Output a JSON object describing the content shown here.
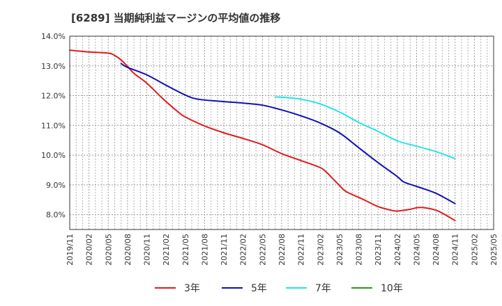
{
  "chart_data": {
    "type": "line",
    "title": "[6289]  当期純利益マージンの平均値の推移",
    "xlabel": "",
    "ylabel": "",
    "x_ticks": [
      "2019/11",
      "2020/02",
      "2020/05",
      "2020/08",
      "2020/11",
      "2021/02",
      "2021/05",
      "2021/08",
      "2021/11",
      "2022/02",
      "2022/05",
      "2022/08",
      "2022/11",
      "2023/02",
      "2023/05",
      "2023/08",
      "2023/11",
      "2024/02",
      "2024/05",
      "2024/08",
      "2024/11",
      "2025/02",
      "2025/05"
    ],
    "y_ticks": [
      "8.0%",
      "9.0%",
      "10.0%",
      "11.0%",
      "12.0%",
      "13.0%",
      "14.0%"
    ],
    "ylim": [
      7.5,
      14.0
    ],
    "grid": true,
    "legend_position": "bottom",
    "series": [
      {
        "name": "3年",
        "color": "#dd1c1c",
        "x": [
          "2019/11",
          "2020/02",
          "2020/05",
          "2020/06",
          "2020/07",
          "2020/08",
          "2020/09",
          "2020/11",
          "2021/01",
          "2021/02",
          "2021/04",
          "2021/05",
          "2021/08",
          "2021/11",
          "2022/02",
          "2022/05",
          "2022/08",
          "2022/11",
          "2023/02",
          "2023/03",
          "2023/04",
          "2023/05",
          "2023/06",
          "2023/08",
          "2023/09",
          "2023/11",
          "2024/01",
          "2024/02",
          "2024/04",
          "2024/05",
          "2024/06",
          "2024/08",
          "2024/09",
          "2024/11"
        ],
        "values": [
          13.53,
          13.47,
          13.43,
          13.35,
          13.2,
          12.98,
          12.75,
          12.42,
          12.0,
          11.8,
          11.43,
          11.28,
          10.98,
          10.75,
          10.56,
          10.35,
          10.05,
          9.82,
          9.58,
          9.42,
          9.2,
          8.98,
          8.78,
          8.58,
          8.48,
          8.27,
          8.15,
          8.12,
          8.18,
          8.23,
          8.24,
          8.15,
          8.05,
          7.8
        ]
      },
      {
        "name": "5年",
        "color": "#1010b0",
        "x": [
          "2020/07",
          "2020/08",
          "2020/11",
          "2021/02",
          "2021/05",
          "2021/07",
          "2021/11",
          "2022/02",
          "2022/05",
          "2022/08",
          "2022/11",
          "2023/02",
          "2023/05",
          "2023/08",
          "2023/11",
          "2024/02",
          "2024/03",
          "2024/05",
          "2024/08",
          "2024/11"
        ],
        "values": [
          13.08,
          12.95,
          12.7,
          12.35,
          12.02,
          11.88,
          11.8,
          11.75,
          11.68,
          11.52,
          11.32,
          11.08,
          10.75,
          10.25,
          9.75,
          9.28,
          9.1,
          8.95,
          8.72,
          8.37
        ]
      },
      {
        "name": "7年",
        "color": "#22e5e5",
        "x": [
          "2022/07",
          "2022/08",
          "2022/11",
          "2023/02",
          "2023/05",
          "2023/08",
          "2023/11",
          "2024/02",
          "2024/05",
          "2024/08",
          "2024/11"
        ],
        "values": [
          11.95,
          11.95,
          11.88,
          11.72,
          11.45,
          11.1,
          10.8,
          10.48,
          10.3,
          10.12,
          9.88
        ]
      },
      {
        "name": "10年",
        "color": "#229922",
        "x": [],
        "values": []
      }
    ]
  }
}
